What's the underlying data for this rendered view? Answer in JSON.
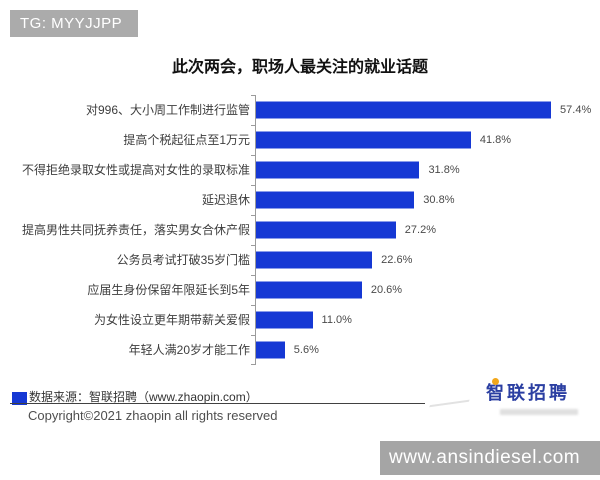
{
  "badge": {
    "label": "TG: MYYJJPP"
  },
  "title": "此次两会，职场人最关注的就业话题",
  "chart_data": {
    "type": "bar",
    "orientation": "horizontal",
    "title": "此次两会，职场人最关注的就业话题",
    "categories": [
      "对996、大小周工作制进行监管",
      "提高个税起征点至1万元",
      "不得拒绝录取女性或提高对女性的录取标准",
      "延迟退休",
      "提高男性共同抚养责任，落实男女合休产假",
      "公务员考试打破35岁门槛",
      "应届生身份保留年限延长到5年",
      "为女性设立更年期带薪关爱假",
      "年轻人满20岁才能工作"
    ],
    "values": [
      57.4,
      41.8,
      31.8,
      30.8,
      27.2,
      22.6,
      20.6,
      11.0,
      5.6
    ],
    "value_labels": [
      "57.4%",
      "41.8%",
      "31.8%",
      "30.8%",
      "27.2%",
      "22.6%",
      "20.6%",
      "11.0%",
      "5.6%"
    ],
    "xlabel": "",
    "ylabel": "",
    "xlim": [
      0,
      65
    ],
    "grid": false,
    "legend": "none",
    "bar_color": "#1538d4"
  },
  "footer": {
    "source_label": "数据来源：智联招聘（www.zhaopin.com）",
    "copyright": "Copyright©2021 zhaopin all rights reserved"
  },
  "watermarks": {
    "logo_text": "智联招聘",
    "site_box_text": "www.ansindiesel.com"
  },
  "colors": {
    "bar": "#1538d4",
    "badge_bg": "#ababab",
    "site_box_bg": "#a5a5a5",
    "logo_blue": "#2b3fa2",
    "logo_dot_orange": "#f2a71b"
  }
}
